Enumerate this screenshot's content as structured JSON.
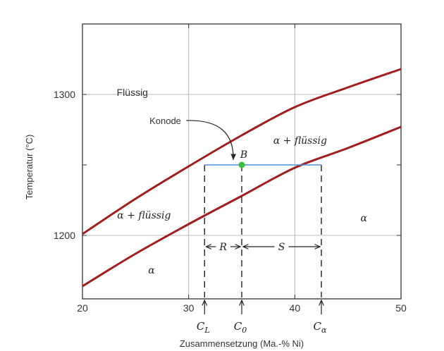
{
  "chart_data": {
    "type": "line",
    "title": "",
    "xlabel": "Zusammensetzung (Ma.-% Ni)",
    "ylabel": "Temperatur (°C)",
    "xlim": [
      20,
      50
    ],
    "ylim": [
      1155,
      1350
    ],
    "x_ticks": [
      20,
      30,
      40,
      50
    ],
    "y_ticks": [
      1200,
      1300
    ],
    "grid": true,
    "colors": {
      "curve": "#a21d1d",
      "tie_line": "#4a90d9",
      "point": "#3fbf3f",
      "frame": "#333333",
      "grid": "#bbbbbb"
    },
    "series": [
      {
        "x": [
          20,
          25,
          30,
          35,
          40,
          45,
          50
        ],
        "y": [
          1201,
          1226,
          1249,
          1271,
          1291,
          1305,
          1318
        ]
      },
      {
        "x": [
          20,
          25,
          30,
          35,
          40,
          45,
          50
        ],
        "y": [
          1164,
          1187,
          1208,
          1228,
          1248,
          1262,
          1277
        ]
      }
    ],
    "tie_line": {
      "x1": 31.5,
      "x2": 42.5,
      "y": 1250
    },
    "point": {
      "label": "B",
      "x": 35,
      "y": 1250
    },
    "markers": [
      {
        "label_main": "C",
        "label_sub": "L",
        "x": 31.5
      },
      {
        "label_main": "C",
        "label_sub": "0",
        "x": 35
      },
      {
        "label_main": "C",
        "label_sub": "α",
        "x": 42.5
      }
    ],
    "lever": {
      "y": 1192,
      "R": "R",
      "S": "S"
    },
    "regions": [
      {
        "text": "Flüssig",
        "x": 24.7,
        "y": 1299,
        "style": "sans"
      },
      {
        "text": "α + flüssig",
        "x": 40.5,
        "y": 1265,
        "style": "serif"
      },
      {
        "text": "α + flüssig",
        "x": 25.8,
        "y": 1212,
        "style": "serif"
      },
      {
        "text": "α",
        "x": 46.5,
        "y": 1210,
        "style": "serif"
      },
      {
        "text": "α",
        "x": 26.5,
        "y": 1173,
        "style": "serif"
      }
    ],
    "annotation": {
      "text": "Konode",
      "x": 27.8,
      "y": 1279,
      "arrow_to_x": 34.2,
      "arrow_to_y": 1252
    }
  }
}
